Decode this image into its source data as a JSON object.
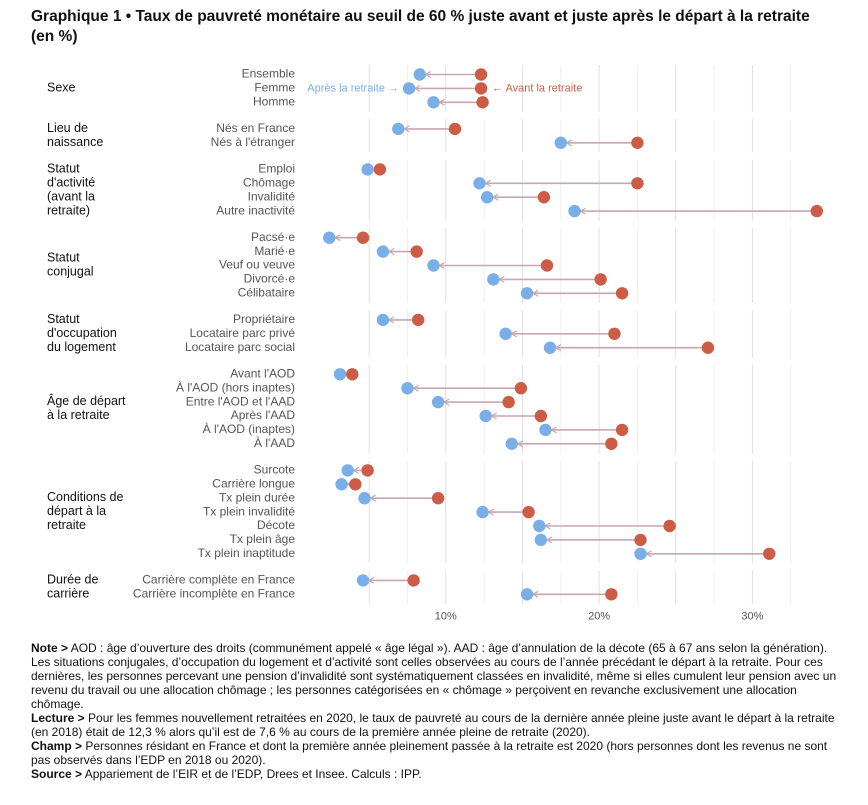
{
  "title": "Graphique 1 • Taux de pauvreté monétaire au seuil de 60 % juste avant et juste après le départ à la retraite (en %)",
  "colors": {
    "avant": "#cc5c45",
    "apres": "#7aaee6",
    "link": "#c8a6b4",
    "grid": "#e6e6e6",
    "label": "#555555"
  },
  "chart_data": {
    "type": "dumbbell",
    "xlim": [
      0,
      35
    ],
    "ticks": [
      10,
      20,
      30
    ],
    "tick_labels": [
      "10%",
      "20%",
      "30%"
    ],
    "legend": {
      "apres": "Après la retraite →",
      "avant": "← Avant la retraite"
    },
    "groups": [
      {
        "label": "Sexe",
        "rows": [
          {
            "label": "Ensemble",
            "apres": 8.3,
            "avant": 12.3
          },
          {
            "label": "Femme",
            "apres": 7.6,
            "avant": 12.3
          },
          {
            "label": "Homme",
            "apres": 9.2,
            "avant": 12.4
          }
        ]
      },
      {
        "label": "Lieu de naissance",
        "rows": [
          {
            "label": "Nés en France",
            "apres": 6.9,
            "avant": 10.6
          },
          {
            "label": "Nés à l'étranger",
            "apres": 17.5,
            "avant": 22.5
          }
        ]
      },
      {
        "label": "Statut d'activité (avant la retraite)",
        "rows": [
          {
            "label": "Emploi",
            "apres": 4.9,
            "avant": 5.7
          },
          {
            "label": "Chômage",
            "apres": 12.2,
            "avant": 22.5
          },
          {
            "label": "Invalidité",
            "apres": 12.7,
            "avant": 16.4
          },
          {
            "label": "Autre inactivité",
            "apres": 18.4,
            "avant": 34.2
          }
        ]
      },
      {
        "label": "Statut conjugal",
        "rows": [
          {
            "label": "Pacsé·e",
            "apres": 2.4,
            "avant": 4.6
          },
          {
            "label": "Marié·e",
            "apres": 5.9,
            "avant": 8.1
          },
          {
            "label": "Veuf ou veuve",
            "apres": 9.2,
            "avant": 16.6
          },
          {
            "label": "Divorcé·e",
            "apres": 13.1,
            "avant": 20.1
          },
          {
            "label": "Célibataire",
            "apres": 15.3,
            "avant": 21.5
          }
        ]
      },
      {
        "label": "Statut d'occupation du logement",
        "rows": [
          {
            "label": "Propriétaire",
            "apres": 5.9,
            "avant": 8.2
          },
          {
            "label": "Locataire parc privé",
            "apres": 13.9,
            "avant": 21.0
          },
          {
            "label": "Locataire parc social",
            "apres": 16.8,
            "avant": 27.1
          }
        ]
      },
      {
        "label": "Âge de départ à la retraite",
        "rows": [
          {
            "label": "Avant l'AOD",
            "apres": 3.1,
            "avant": 3.9
          },
          {
            "label": "À l'AOD (hors inaptes)",
            "apres": 7.5,
            "avant": 14.9
          },
          {
            "label": "Entre l'AOD et l'AAD",
            "apres": 9.5,
            "avant": 14.1
          },
          {
            "label": "Après l'AAD",
            "apres": 12.6,
            "avant": 16.2
          },
          {
            "label": "À l'AOD (inaptes)",
            "apres": 16.5,
            "avant": 21.5
          },
          {
            "label": "À l'AAD",
            "apres": 14.3,
            "avant": 20.8
          }
        ]
      },
      {
        "label": "Conditions de départ à la retraite",
        "rows": [
          {
            "label": "Surcote",
            "apres": 3.6,
            "avant": 4.9
          },
          {
            "label": "Carrière longue",
            "apres": 3.2,
            "avant": 4.1
          },
          {
            "label": "Tx plein durée",
            "apres": 4.7,
            "avant": 9.5
          },
          {
            "label": "Tx plein invalidité",
            "apres": 12.4,
            "avant": 15.4
          },
          {
            "label": "Décote",
            "apres": 16.1,
            "avant": 24.6
          },
          {
            "label": "Tx plein âge",
            "apres": 16.2,
            "avant": 22.7
          },
          {
            "label": "Tx plein inaptitude",
            "apres": 22.7,
            "avant": 31.1
          }
        ]
      },
      {
        "label": "Durée de carrière",
        "rows": [
          {
            "label": "Carrière complète en France",
            "apres": 4.6,
            "avant": 7.9
          },
          {
            "label": "Carrière incomplète en France",
            "apres": 15.3,
            "avant": 20.8
          }
        ]
      }
    ]
  },
  "notes": [
    {
      "lead": "Note >",
      "text": " AOD : âge d’ouverture des droits (communément appelé « âge légal »). AAD : âge d’annulation de la décote (65 à 67 ans selon la génération). Les situations conjugales, d’occupation du logement et d’activité sont celles observées au cours de l’année précédant le départ à la retraite. Pour ces dernières, les personnes percevant une pension d’invalidité sont systématiquement classées en invalidité, même si elles cumulent leur pension avec un revenu du travail ou une allocation chômage ; les personnes catégorisées en « chômage » perçoivent en revanche exclusivement une allocation chômage."
    },
    {
      "lead": "Lecture >",
      "text": " Pour les femmes nouvellement retraitées en 2020, le taux de pauvreté au cours de la dernière année pleine juste avant le départ à la retraite (en 2018) était de 12,3 % alors qu’il est de 7,6 % au cours de la première année pleine de retraite (2020)."
    },
    {
      "lead": "Champ >",
      "text": " Personnes résidant en France et dont la première année pleinement passée à la retraite est 2020 (hors personnes dont les revenus ne sont pas observés dans l’EDP en 2018 ou 2020)."
    },
    {
      "lead": "Source >",
      "text": " Appariement de l’EIR et de l’EDP, Drees et Insee. Calculs : IPP."
    }
  ]
}
